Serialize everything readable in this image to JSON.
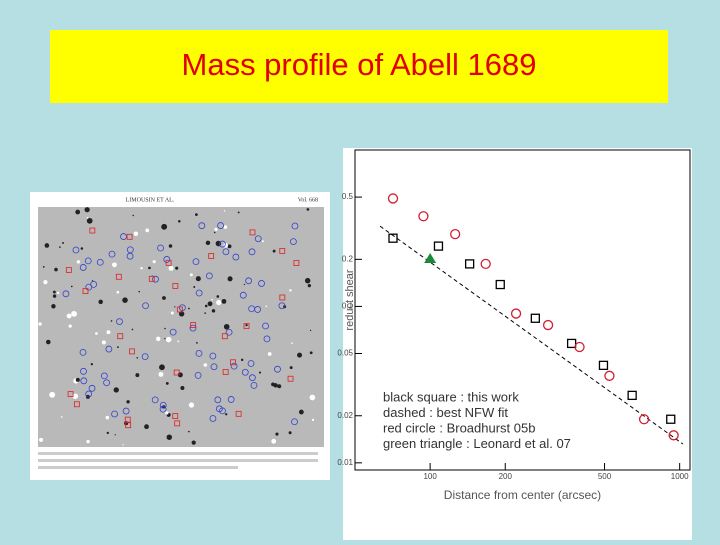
{
  "image": {
    "header": "LIMOUSIN ET AL.",
    "volume": "Vol. 668"
  },
  "chart_data": {
    "type": "scatter",
    "title": "Mass profile of Abell 1689",
    "x_label": "Distance from center (arcsec)",
    "y_label": "reduct shear",
    "log_x": true,
    "log_y": true,
    "xlim": [
      50,
      1100
    ],
    "ylim": [
      0.009,
      1
    ],
    "xticks": [
      100,
      200,
      500,
      1000
    ],
    "yticks": [
      0.5,
      0.2,
      0.1,
      0.05,
      0.02,
      0.01
    ],
    "series": [
      {
        "name": "black square : this work",
        "color": "#000000",
        "marker": "square",
        "x": [
          71,
          108,
          144,
          191,
          264,
          369,
          495,
          645,
          921
        ],
        "values": [
          0.273,
          0.243,
          0.187,
          0.138,
          0.084,
          0.058,
          0.042,
          0.027,
          0.019
        ]
      },
      {
        "name": "dashed : best NFW fit",
        "color": "#000000",
        "marker": "dashed",
        "x": [
          63,
          1030
        ],
        "values": [
          0.326,
          0.0132
        ]
      },
      {
        "name": "red circle : Broadhurst 05b",
        "color": "#d02030",
        "marker": "circle",
        "x": [
          71,
          94,
          126,
          167,
          221,
          297,
          397,
          523,
          720,
          946
        ],
        "values": [
          0.49,
          0.377,
          0.29,
          0.187,
          0.09,
          0.076,
          0.055,
          0.036,
          0.019,
          0.015
        ]
      },
      {
        "name": "green triangle : Leonard et al. 07",
        "color": "#1a8a3a",
        "marker": "triangle",
        "x": [
          100
        ],
        "values": [
          0.201
        ]
      }
    ]
  }
}
